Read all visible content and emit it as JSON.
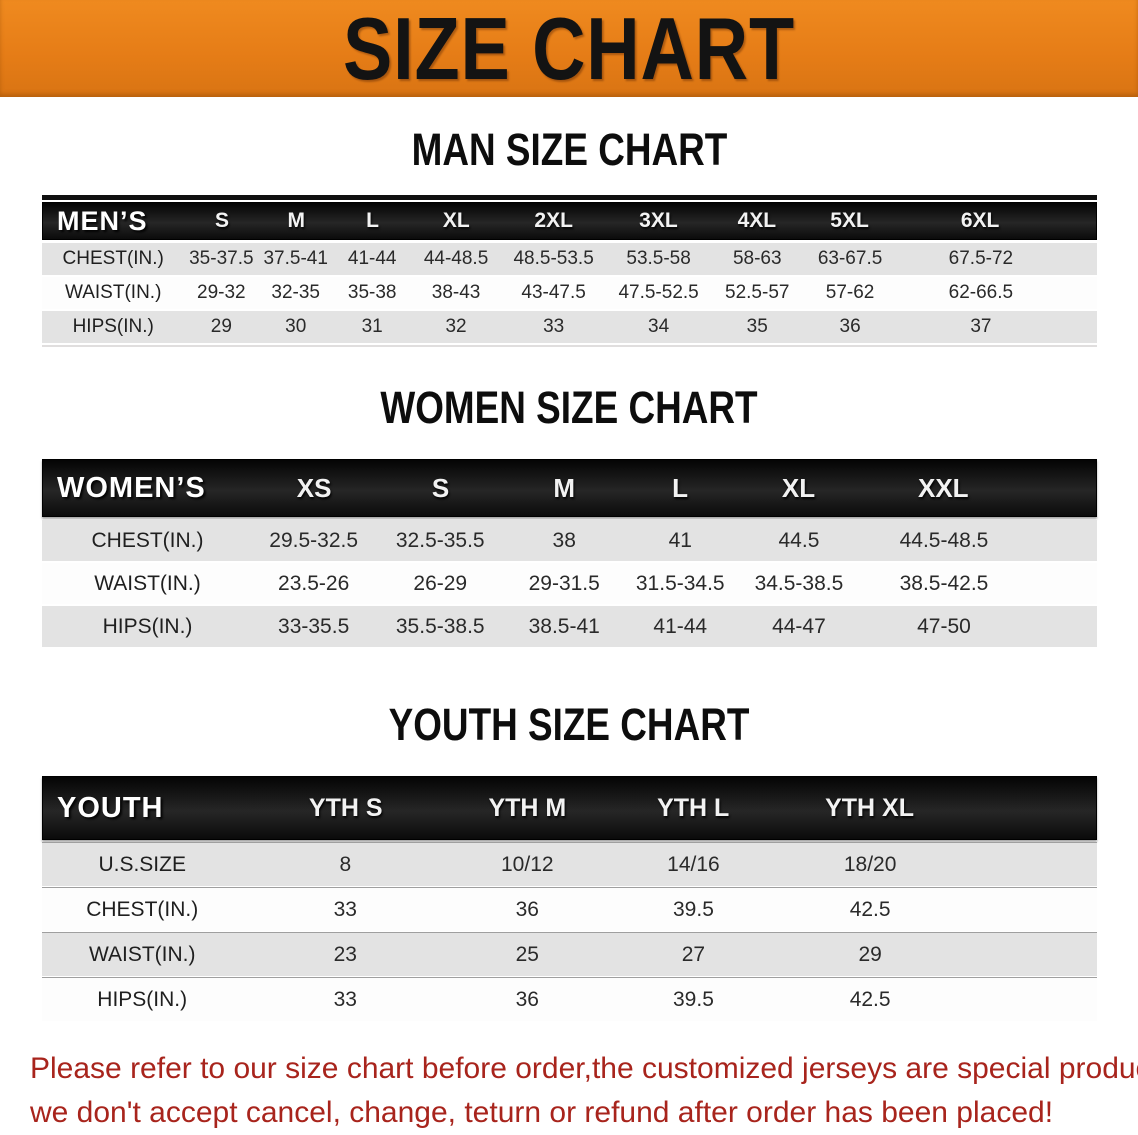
{
  "banner": {
    "title": "SIZE CHART"
  },
  "sections": {
    "men": {
      "heading": "MAN SIZE CHART",
      "table": {
        "title": "MEN’S",
        "columns": [
          "S",
          "M",
          "L",
          "XL",
          "2XL",
          "3XL",
          "4XL",
          "5XL",
          "6XL"
        ],
        "rows": [
          {
            "label": "CHEST(IN.)",
            "values": [
              "35-37.5",
              "37.5-41",
              "41-44",
              "44-48.5",
              "48.5-53.5",
              "53.5-58",
              "58-63",
              "63-67.5",
              "67.5-72"
            ]
          },
          {
            "label": "WAIST(IN.)",
            "values": [
              "29-32",
              "32-35",
              "35-38",
              "38-43",
              "43-47.5",
              "47.5-52.5",
              "52.5-57",
              "57-62",
              "62-66.5"
            ]
          },
          {
            "label": "HIPS(IN.)",
            "values": [
              "29",
              "30",
              "31",
              "32",
              "33",
              "34",
              "35",
              "36",
              "37"
            ]
          }
        ]
      }
    },
    "women": {
      "heading": "WOMEN SIZE CHART",
      "table": {
        "title": "WOMEN’S",
        "columns": [
          "XS",
          "S",
          "M",
          "L",
          "XL",
          "XXL"
        ],
        "rows": [
          {
            "label": "CHEST(IN.)",
            "values": [
              "29.5-32.5",
              "32.5-35.5",
              "38",
              "41",
              "44.5",
              "44.5-48.5"
            ]
          },
          {
            "label": "WAIST(IN.)",
            "values": [
              "23.5-26",
              "26-29",
              "29-31.5",
              "31.5-34.5",
              "34.5-38.5",
              "38.5-42.5"
            ]
          },
          {
            "label": "HIPS(IN.)",
            "values": [
              "33-35.5",
              "35.5-38.5",
              "38.5-41",
              "41-44",
              "44-47",
              "47-50"
            ]
          }
        ]
      }
    },
    "youth": {
      "heading": "YOUTH SIZE CHART",
      "table": {
        "title": "YOUTH",
        "columns": [
          "YTH S",
          "YTH M",
          "YTH L",
          "YTH XL"
        ],
        "rows": [
          {
            "label": "U.S.SIZE",
            "values": [
              "8",
              "10/12",
              "14/16",
              "18/20"
            ]
          },
          {
            "label": "CHEST(IN.)",
            "values": [
              "33",
              "36",
              "39.5",
              "42.5"
            ]
          },
          {
            "label": "WAIST(IN.)",
            "values": [
              "23",
              "25",
              "27",
              "29"
            ]
          },
          {
            "label": "HIPS(IN.)",
            "values": [
              "33",
              "36",
              "39.5",
              "42.5"
            ]
          }
        ]
      }
    }
  },
  "footer": {
    "line1": "Please refer to our size chart before order,the customized jerseys are special products,",
    "line2": "we don't accept cancel, change, teturn or refund after order has been placed!"
  },
  "colors": {
    "banner_orange": "#e67d17",
    "header_black": "#141414",
    "row_gray": "#e3e3e3",
    "note_red": "#a8241c"
  }
}
